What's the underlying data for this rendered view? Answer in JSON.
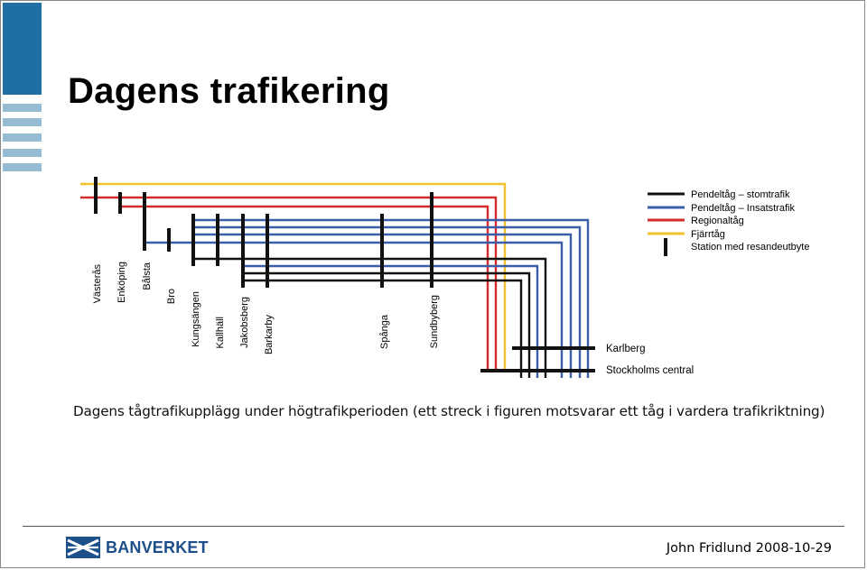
{
  "slide": {
    "title": "Dagens trafikering",
    "caption": "Dagens tågtrafikupplägg under högtrafikperioden (ett streck i figuren motsvarar ett tåg i vardera trafikriktning)",
    "author": "John Fridlund 2008-10-29",
    "logo_text": "BANVERKET"
  },
  "diagram": {
    "stations": [
      "Västerås",
      "Enköping",
      "Bålsta",
      "Bro",
      "Kungsängen",
      "Kallhäll",
      "Jakobsberg",
      "Barkarby",
      "Spånga",
      "Sundbyberg"
    ],
    "terminals": [
      "Karlberg",
      "Stockholms central"
    ],
    "legend": [
      {
        "label": "Pendeltåg – stomtrafik",
        "color": "#111111",
        "kind": "line"
      },
      {
        "label": "Pendeltåg – Insatstrafik",
        "color": "#3a5fa8",
        "kind": "line"
      },
      {
        "label": "Regionaltåg",
        "color": "#d62b2b",
        "kind": "line"
      },
      {
        "label": "Fjärrtåg",
        "color": "#f2c12e",
        "kind": "line"
      },
      {
        "label": "Station med resandeutbyte",
        "color": "#111111",
        "kind": "tick"
      }
    ],
    "colors": {
      "pendel_stom": "#111111",
      "pendel_insats": "#3a5fa8",
      "regional": "#d62b2b",
      "fjarr": "#f2c12e"
    }
  }
}
